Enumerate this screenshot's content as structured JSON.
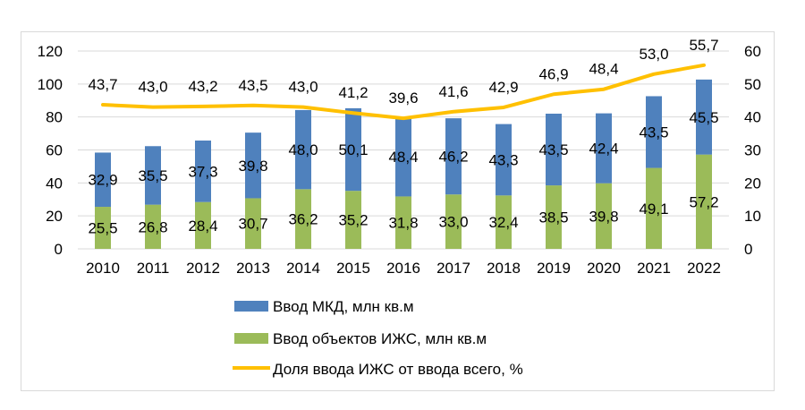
{
  "chart_data": {
    "type": "bar",
    "stacked": true,
    "title": "",
    "categories": [
      "2010",
      "2011",
      "2012",
      "2013",
      "2014",
      "2015",
      "2016",
      "2017",
      "2018",
      "2019",
      "2020",
      "2021",
      "2022"
    ],
    "series": [
      {
        "name": "Ввод объектов ИЖС, млн кв.м",
        "type": "bar",
        "axis": "left",
        "color": "#9BBB59",
        "values": [
          25.5,
          26.8,
          28.4,
          30.7,
          36.2,
          35.2,
          31.8,
          33.0,
          32.4,
          38.5,
          39.8,
          49.1,
          57.2
        ],
        "labels": [
          "25,5",
          "26,8",
          "28,4",
          "30,7",
          "36,2",
          "35,2",
          "31,8",
          "33,0",
          "32,4",
          "38,5",
          "39,8",
          "49,1",
          "57,2"
        ]
      },
      {
        "name": "Ввод МКД, млн кв.м",
        "type": "bar",
        "axis": "left",
        "color": "#4F81BD",
        "values": [
          32.9,
          35.5,
          37.3,
          39.8,
          48.0,
          50.1,
          48.4,
          46.2,
          43.3,
          43.5,
          42.4,
          43.5,
          45.5
        ],
        "labels": [
          "32,9",
          "35,5",
          "37,3",
          "39,8",
          "48,0",
          "50,1",
          "48,4",
          "46,2",
          "43,3",
          "43,5",
          "42,4",
          "43,5",
          "45,5"
        ]
      },
      {
        "name": "Доля ввода ИЖС от ввода всего, %",
        "type": "line",
        "axis": "right",
        "color": "#FFC000",
        "values": [
          43.7,
          43.0,
          43.2,
          43.5,
          43.0,
          41.2,
          39.6,
          41.6,
          42.9,
          46.9,
          48.4,
          53.0,
          55.7
        ],
        "labels": [
          "43,7",
          "43,0",
          "43,2",
          "43,5",
          "43,0",
          "41,2",
          "39,6",
          "41,6",
          "42,9",
          "46,9",
          "48,4",
          "53,0",
          "55,7"
        ]
      }
    ],
    "y_left": {
      "ticks": [
        "0",
        "20",
        "40",
        "60",
        "80",
        "100",
        "120"
      ],
      "range": [
        0,
        120
      ]
    },
    "y_right": {
      "ticks": [
        "0",
        "10",
        "20",
        "30",
        "40",
        "50",
        "60"
      ],
      "range": [
        0,
        60
      ]
    },
    "grid": true,
    "legend": {
      "position": "bottom",
      "items": [
        "Ввод МКД, млн кв.м",
        "Ввод объектов ИЖС, млн кв.м",
        "Доля ввода ИЖС от ввода всего, %"
      ]
    }
  }
}
